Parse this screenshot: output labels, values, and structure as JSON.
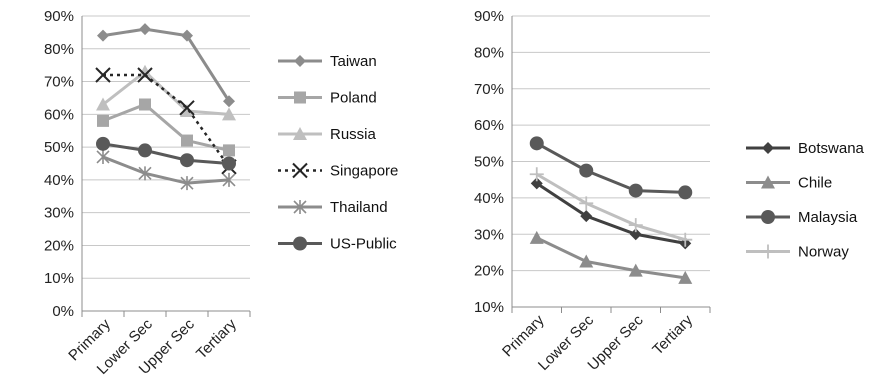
{
  "chart_data": [
    {
      "type": "line",
      "categories": [
        "Primary",
        "Lower Sec",
        "Upper Sec",
        "Tertiary"
      ],
      "ylim": [
        0,
        90
      ],
      "yticks": [
        "0%",
        "10%",
        "20%",
        "30%",
        "40%",
        "50%",
        "60%",
        "70%",
        "80%",
        "90%"
      ],
      "grid": true,
      "legend_position": "right",
      "series": [
        {
          "name": "Taiwan",
          "values": [
            84,
            86,
            84,
            64
          ],
          "color": "#8c8c8c",
          "marker": "diamond",
          "dash": false
        },
        {
          "name": "Poland",
          "values": [
            58,
            63,
            52,
            49
          ],
          "color": "#a6a6a6",
          "marker": "square",
          "dash": false
        },
        {
          "name": "Russia",
          "values": [
            63,
            73,
            61,
            60
          ],
          "color": "#bfbfbf",
          "marker": "triangle",
          "dash": false
        },
        {
          "name": "Singapore",
          "values": [
            72,
            72,
            62,
            44
          ],
          "color": "#262626",
          "marker": "x",
          "dash": true
        },
        {
          "name": "Thailand",
          "values": [
            47,
            42,
            39,
            40
          ],
          "color": "#8c8c8c",
          "marker": "asterisk",
          "dash": false
        },
        {
          "name": "US-Public",
          "values": [
            51,
            49,
            46,
            45
          ],
          "color": "#595959",
          "marker": "circle",
          "dash": false
        }
      ]
    },
    {
      "type": "line",
      "categories": [
        "Primary",
        "Lower Sec",
        "Upper Sec",
        "Tertiary"
      ],
      "ylim": [
        10,
        90
      ],
      "yticks": [
        "10%",
        "20%",
        "30%",
        "40%",
        "50%",
        "60%",
        "70%",
        "80%",
        "90%"
      ],
      "grid": true,
      "legend_position": "right",
      "series": [
        {
          "name": "Botswana",
          "values": [
            44,
            35,
            30,
            27.5
          ],
          "color": "#404040",
          "marker": "diamond",
          "dash": false
        },
        {
          "name": "Chile",
          "values": [
            29,
            22.5,
            20,
            18
          ],
          "color": "#8c8c8c",
          "marker": "triangle",
          "dash": false
        },
        {
          "name": "Malaysia",
          "values": [
            55,
            47.5,
            42,
            41.5
          ],
          "color": "#595959",
          "marker": "circle",
          "dash": false
        },
        {
          "name": "Norway",
          "values": [
            46.5,
            38.5,
            32.5,
            28.5
          ],
          "color": "#bfbfbf",
          "marker": "plus",
          "dash": false
        }
      ]
    }
  ]
}
